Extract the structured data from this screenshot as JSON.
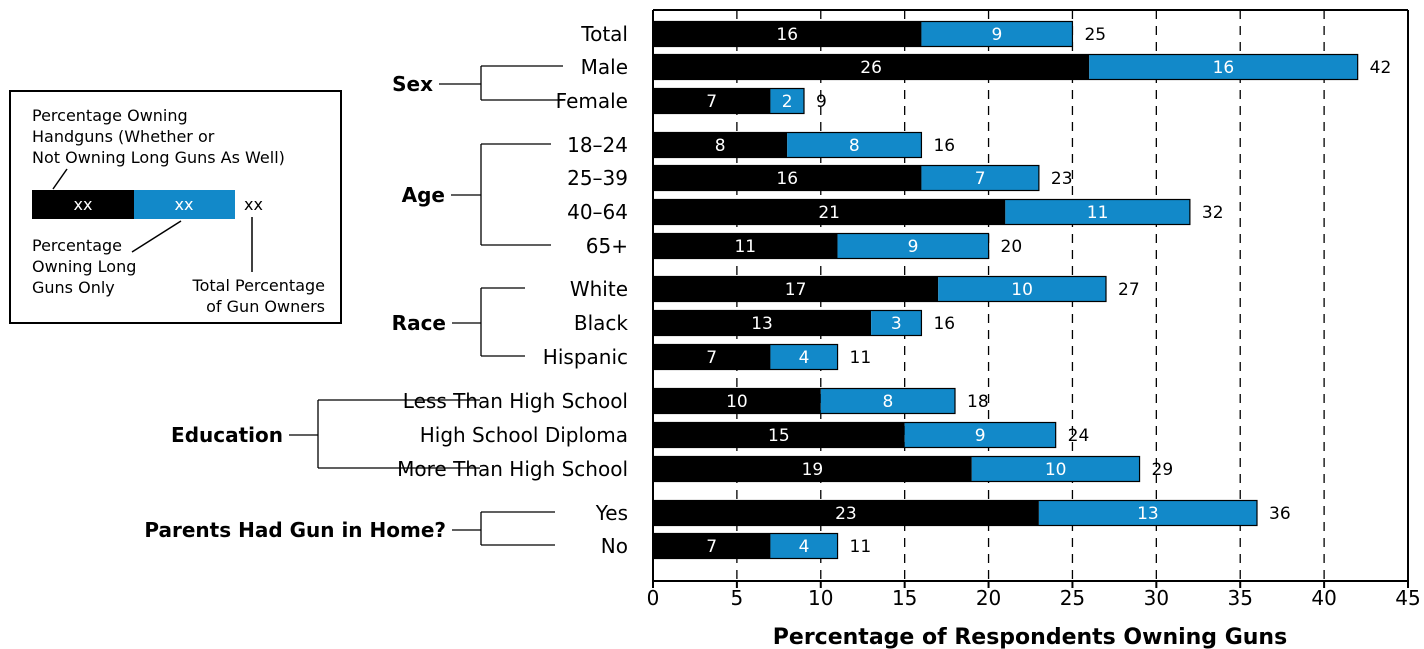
{
  "colors": {
    "handgun": "#000000",
    "longgun": "#1289c9",
    "axis": "#000000"
  },
  "chart_data": {
    "type": "bar",
    "orientation": "horizontal",
    "stacked": true,
    "xlabel": "Percentage of Respondents Owning Guns",
    "xlim": [
      0,
      45
    ],
    "xticks": [
      "0",
      "5",
      "10",
      "15",
      "20",
      "25",
      "30",
      "35",
      "40",
      "45"
    ],
    "grid": "vertical dashed",
    "categories": [
      "Total",
      "Male",
      "Female",
      "18–24",
      "25–39",
      "40–64",
      "65+",
      "White",
      "Black",
      "Hispanic",
      "Less Than High School",
      "High School Diploma",
      "More Than High School",
      "Yes",
      "No"
    ],
    "groups": [
      {
        "label": "",
        "members": [
          "Total"
        ]
      },
      {
        "label": "Sex",
        "members": [
          "Male",
          "Female"
        ]
      },
      {
        "label": "Age",
        "members": [
          "18–24",
          "25–39",
          "40–64",
          "65+"
        ]
      },
      {
        "label": "Race",
        "members": [
          "White",
          "Black",
          "Hispanic"
        ]
      },
      {
        "label": "Education",
        "members": [
          "Less Than High School",
          "High School Diploma",
          "More Than High School"
        ]
      },
      {
        "label": "Parents Had Gun in Home?",
        "members": [
          "Yes",
          "No"
        ]
      }
    ],
    "series": [
      {
        "key": "handgun",
        "values": [
          16,
          26,
          7,
          8,
          16,
          21,
          11,
          17,
          13,
          7,
          10,
          15,
          19,
          23,
          7
        ]
      },
      {
        "key": "longgun",
        "values": [
          9,
          16,
          2,
          8,
          7,
          11,
          9,
          10,
          3,
          4,
          8,
          9,
          10,
          13,
          4
        ]
      }
    ],
    "totals": [
      25,
      42,
      9,
      16,
      23,
      32,
      20,
      27,
      16,
      11,
      18,
      24,
      29,
      36,
      11
    ],
    "legend": {
      "handgun_label_lines": [
        "Percentage Owning",
        "Handguns (Whether or",
        "Not Owning Long Guns As Well)"
      ],
      "longgun_label_lines": [
        "Percentage",
        "Owning Long",
        "Guns Only"
      ],
      "total_label_lines": [
        "Total Percentage",
        "of Gun Owners"
      ],
      "placeholder": "xx"
    }
  }
}
